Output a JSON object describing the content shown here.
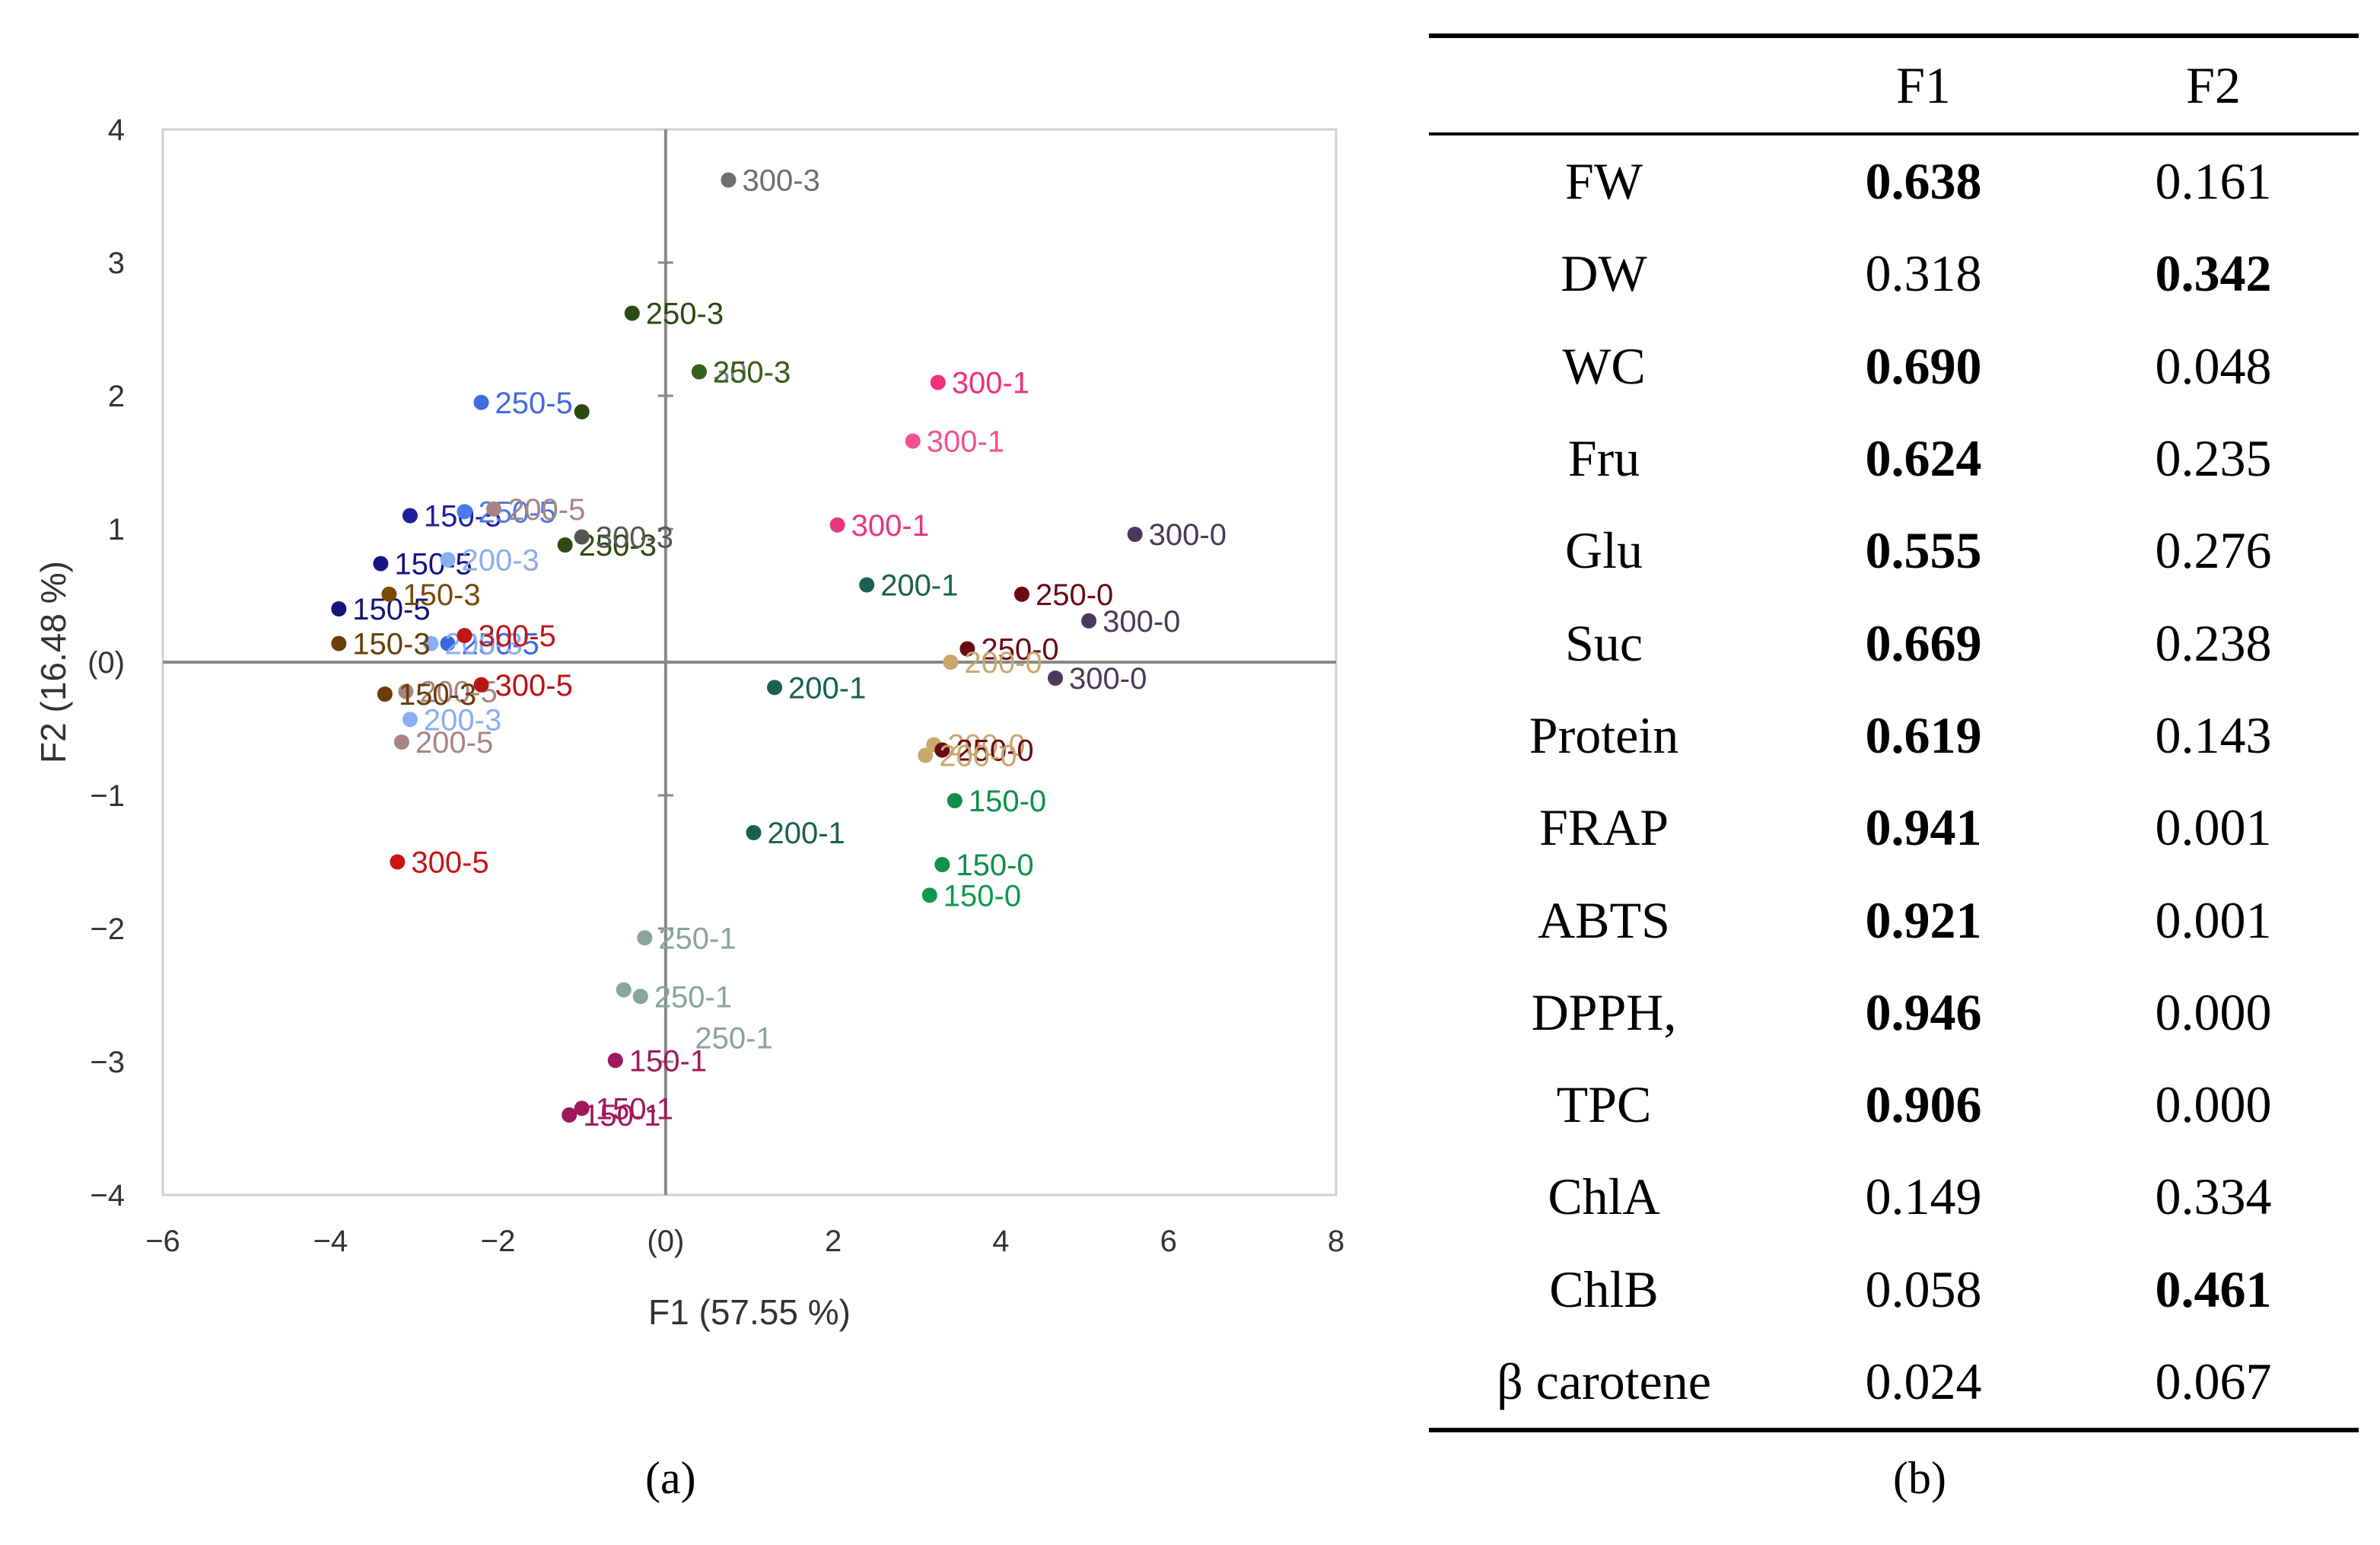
{
  "chart_data": {
    "type": "scatter",
    "xlabel": "F1 (57.55 %)",
    "ylabel": "F2 (16.48 %)",
    "xlim": [
      -6,
      8
    ],
    "ylim": [
      -4,
      4
    ],
    "x_ticks": [
      "−6",
      "−4",
      "−2",
      "(0)",
      "2",
      "4",
      "6",
      "8"
    ],
    "y_ticks": [
      "4",
      "3",
      "2",
      "1",
      "(0)",
      "−1",
      "−2",
      "−3",
      "−4"
    ],
    "points": [
      {
        "x": 0.75,
        "y": 3.62,
        "label": "300-3",
        "color": "#6e6e6e"
      },
      {
        "x": -0.4,
        "y": 2.62,
        "label": "250-3",
        "color": "#2a4a12"
      },
      {
        "x": 0.4,
        "y": 2.18,
        "label": "300-3",
        "color": "#7b7b7b"
      },
      {
        "x": 0.4,
        "y": 2.18,
        "label": "250-3",
        "color": "#37611a"
      },
      {
        "x": -2.2,
        "y": 1.95,
        "label": "250-5",
        "color": "#4169e1"
      },
      {
        "x": -1.0,
        "y": 1.88,
        "label": "",
        "color": "#2a4a12"
      },
      {
        "x": 3.25,
        "y": 2.1,
        "label": "300-1",
        "color": "#f0307a"
      },
      {
        "x": 2.95,
        "y": 1.66,
        "label": "300-1",
        "color": "#f05290"
      },
      {
        "x": 2.05,
        "y": 1.03,
        "label": "300-1",
        "color": "#e8367e"
      },
      {
        "x": -3.05,
        "y": 1.1,
        "label": "150-5",
        "color": "#1f1f9e"
      },
      {
        "x": -3.4,
        "y": 0.74,
        "label": "150-5",
        "color": "#141486"
      },
      {
        "x": -3.9,
        "y": 0.4,
        "label": "150-5",
        "color": "#14147a"
      },
      {
        "x": -2.4,
        "y": 1.13,
        "label": "250-5",
        "color": "#4a7aef"
      },
      {
        "x": -2.05,
        "y": 1.15,
        "label": "200-5",
        "color": "#a88484"
      },
      {
        "x": -1.2,
        "y": 0.88,
        "label": "250-3",
        "color": "#2a4a12"
      },
      {
        "x": -1.0,
        "y": 0.94,
        "label": "300-3",
        "color": "#555555"
      },
      {
        "x": -2.6,
        "y": 0.77,
        "label": "200-3",
        "color": "#8aaef0"
      },
      {
        "x": -3.3,
        "y": 0.51,
        "label": "150-3",
        "color": "#7a4a0a"
      },
      {
        "x": -2.6,
        "y": 0.14,
        "label": "250-5",
        "color": "#3b66e0"
      },
      {
        "x": -2.8,
        "y": 0.14,
        "label": "200-3",
        "color": "#8aaef0"
      },
      {
        "x": -2.4,
        "y": 0.2,
        "label": "300-5",
        "color": "#c01818"
      },
      {
        "x": -3.9,
        "y": 0.14,
        "label": "150-3",
        "color": "#6a3d0a"
      },
      {
        "x": -3.1,
        "y": -0.22,
        "label": "200-5",
        "color": "#a88484"
      },
      {
        "x": -2.2,
        "y": -0.17,
        "label": "300-5",
        "color": "#b81414"
      },
      {
        "x": -3.35,
        "y": -0.24,
        "label": "150-3",
        "color": "#6a3d0a"
      },
      {
        "x": -3.05,
        "y": -0.43,
        "label": "200-3",
        "color": "#8aaef0"
      },
      {
        "x": -3.15,
        "y": -0.6,
        "label": "200-5",
        "color": "#a88484"
      },
      {
        "x": -3.2,
        "y": -1.5,
        "label": "300-5",
        "color": "#c81414"
      },
      {
        "x": 2.4,
        "y": 0.58,
        "label": "200-1",
        "color": "#1a6050"
      },
      {
        "x": 4.25,
        "y": 0.51,
        "label": "250-0",
        "color": "#6a0a14"
      },
      {
        "x": 5.6,
        "y": 0.96,
        "label": "300-0",
        "color": "#4a3a5a"
      },
      {
        "x": 5.05,
        "y": 0.31,
        "label": "300-0",
        "color": "#4a3a5a"
      },
      {
        "x": 3.6,
        "y": 0.1,
        "label": "250-0",
        "color": "#6a0a14"
      },
      {
        "x": 3.4,
        "y": 0.0,
        "label": "200-0",
        "color": "#c8a870"
      },
      {
        "x": 4.65,
        "y": -0.12,
        "label": "300-0",
        "color": "#4a3a5a"
      },
      {
        "x": 1.3,
        "y": -0.19,
        "label": "200-1",
        "color": "#1a6050"
      },
      {
        "x": 3.2,
        "y": -0.62,
        "label": "200-0",
        "color": "#c8a870"
      },
      {
        "x": 3.3,
        "y": -0.66,
        "label": "250-0",
        "color": "#6a0a14"
      },
      {
        "x": 3.1,
        "y": -0.7,
        "label": "200-0",
        "color": "#c8a870"
      },
      {
        "x": 3.45,
        "y": -1.04,
        "label": "150-0",
        "color": "#10904a"
      },
      {
        "x": 1.05,
        "y": -1.28,
        "label": "200-1",
        "color": "#1a6050"
      },
      {
        "x": 3.3,
        "y": -1.52,
        "label": "150-0",
        "color": "#109048"
      },
      {
        "x": 3.15,
        "y": -1.75,
        "label": "150-0",
        "color": "#10984c"
      },
      {
        "x": -0.25,
        "y": -2.07,
        "label": "250-1",
        "color": "#8aa49a"
      },
      {
        "x": -0.5,
        "y": -2.46,
        "label": "",
        "color": "#8aa49a"
      },
      {
        "x": -0.3,
        "y": -2.51,
        "label": "250-1",
        "color": "#8aa49a"
      },
      {
        "x": -0.6,
        "y": -2.99,
        "label": "150-1",
        "color": "#a0185a"
      },
      {
        "x": -1.0,
        "y": -3.35,
        "label": "150-1",
        "color": "#a0185a"
      },
      {
        "x": -1.15,
        "y": -3.4,
        "label": "150-1",
        "color": "#a0185a"
      }
    ],
    "extra_labels": [
      {
        "x": 0.35,
        "y": -2.82,
        "label": "250-1",
        "color": "#8aa49a"
      }
    ]
  },
  "caption_a": "(a)",
  "caption_b": "(b)",
  "table": {
    "headers": [
      "",
      "F1",
      "F2"
    ],
    "rows": [
      {
        "name": "FW",
        "f1": "0.638",
        "f2": "0.161",
        "b1": true,
        "b2": false
      },
      {
        "name": "DW",
        "f1": "0.318",
        "f2": "0.342",
        "b1": false,
        "b2": true
      },
      {
        "name": "WC",
        "f1": "0.690",
        "f2": "0.048",
        "b1": true,
        "b2": false
      },
      {
        "name": "Fru",
        "f1": "0.624",
        "f2": "0.235",
        "b1": true,
        "b2": false
      },
      {
        "name": "Glu",
        "f1": "0.555",
        "f2": "0.276",
        "b1": true,
        "b2": false
      },
      {
        "name": "Suc",
        "f1": "0.669",
        "f2": "0.238",
        "b1": true,
        "b2": false
      },
      {
        "name": "Protein",
        "f1": "0.619",
        "f2": "0.143",
        "b1": true,
        "b2": false
      },
      {
        "name": "FRAP",
        "f1": "0.941",
        "f2": "0.001",
        "b1": true,
        "b2": false
      },
      {
        "name": "ABTS",
        "f1": "0.921",
        "f2": "0.001",
        "b1": true,
        "b2": false
      },
      {
        "name": "DPPH,",
        "f1": "0.946",
        "f2": "0.000",
        "b1": true,
        "b2": false
      },
      {
        "name": "TPC",
        "f1": "0.906",
        "f2": "0.000",
        "b1": true,
        "b2": false
      },
      {
        "name": "ChlA",
        "f1": "0.149",
        "f2": "0.334",
        "b1": false,
        "b2": false
      },
      {
        "name": "ChlB",
        "f1": "0.058",
        "f2": "0.461",
        "b1": false,
        "b2": true
      },
      {
        "name": "β carotene",
        "f1": "0.024",
        "f2": "0.067",
        "b1": false,
        "b2": false
      }
    ]
  }
}
